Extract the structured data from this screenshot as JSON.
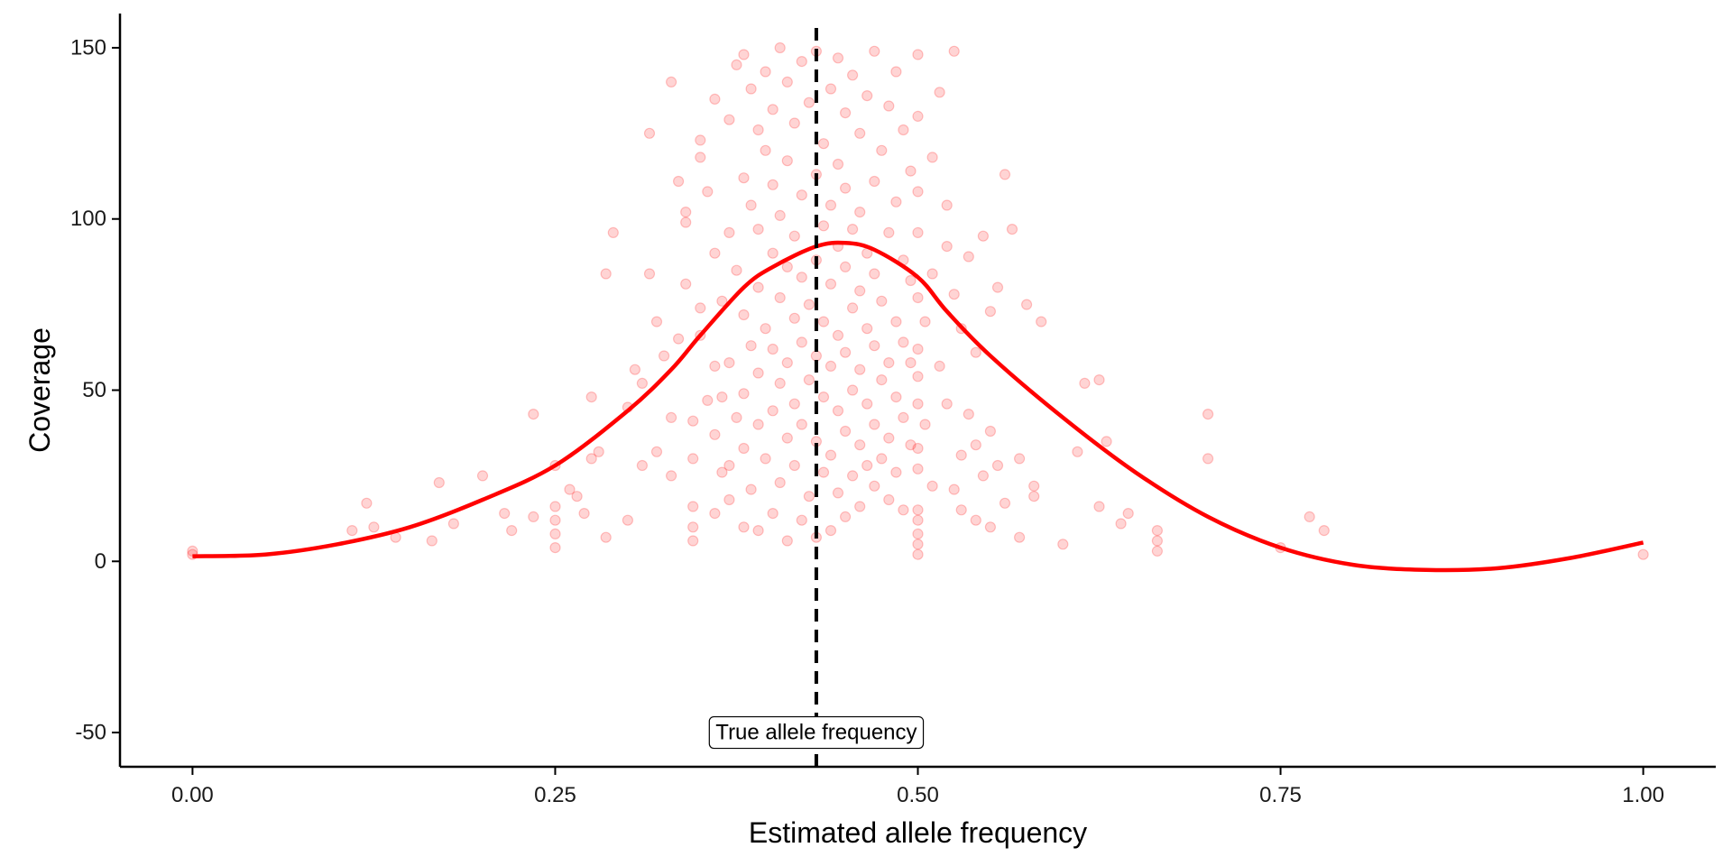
{
  "chart_data": {
    "type": "scatter",
    "title": "",
    "xlabel": "Estimated allele frequency",
    "ylabel": "Coverage",
    "xlim": [
      -0.05,
      1.05
    ],
    "ylim": [
      -60,
      160
    ],
    "x_ticks": [
      0.0,
      0.25,
      0.5,
      0.75,
      1.0
    ],
    "x_tick_labels": [
      "0.00",
      "0.25",
      "0.50",
      "0.75",
      "1.00"
    ],
    "y_ticks": [
      -50,
      0,
      50,
      100,
      150
    ],
    "y_tick_labels": [
      "-50",
      "0",
      "50",
      "100",
      "150"
    ],
    "grid": false,
    "legend": "none",
    "colors": {
      "points": "#ff0000",
      "smooth": "#ff0000",
      "reference_line": "#000000",
      "axis": "#000000"
    },
    "reference_line": {
      "x": 0.43,
      "style": "dashed",
      "label": "True allele frequency",
      "label_y": -50
    },
    "smooth_curve": {
      "x": [
        0.0,
        0.05,
        0.1,
        0.15,
        0.2,
        0.25,
        0.3,
        0.33,
        0.35,
        0.38,
        0.4,
        0.43,
        0.45,
        0.47,
        0.5,
        0.52,
        0.55,
        0.6,
        0.65,
        0.7,
        0.75,
        0.8,
        0.85,
        0.9,
        0.95,
        1.0
      ],
      "y": [
        1.5,
        2,
        5,
        10,
        18,
        28,
        44,
        56,
        66,
        80,
        86,
        92,
        93,
        91,
        83,
        73,
        60,
        42,
        26,
        13,
        4,
        -1,
        -2.5,
        -2,
        1,
        5.5
      ]
    },
    "points": [
      [
        0.0,
        3
      ],
      [
        0.0,
        2
      ],
      [
        0.11,
        9
      ],
      [
        0.12,
        17
      ],
      [
        0.125,
        10
      ],
      [
        0.14,
        7
      ],
      [
        0.165,
        6
      ],
      [
        0.17,
        23
      ],
      [
        0.18,
        11
      ],
      [
        0.2,
        25
      ],
      [
        0.215,
        14
      ],
      [
        0.22,
        9
      ],
      [
        0.235,
        43
      ],
      [
        0.235,
        13
      ],
      [
        0.25,
        28
      ],
      [
        0.25,
        16
      ],
      [
        0.25,
        12
      ],
      [
        0.25,
        8
      ],
      [
        0.25,
        4
      ],
      [
        0.26,
        21
      ],
      [
        0.265,
        19
      ],
      [
        0.27,
        14
      ],
      [
        0.275,
        48
      ],
      [
        0.275,
        30
      ],
      [
        0.28,
        32
      ],
      [
        0.285,
        7
      ],
      [
        0.285,
        84
      ],
      [
        0.29,
        96
      ],
      [
        0.3,
        45
      ],
      [
        0.3,
        12
      ],
      [
        0.305,
        56
      ],
      [
        0.31,
        28
      ],
      [
        0.31,
        52
      ],
      [
        0.315,
        84
      ],
      [
        0.315,
        125
      ],
      [
        0.32,
        32
      ],
      [
        0.32,
        70
      ],
      [
        0.325,
        60
      ],
      [
        0.33,
        42
      ],
      [
        0.33,
        25
      ],
      [
        0.33,
        140
      ],
      [
        0.335,
        111
      ],
      [
        0.335,
        65
      ],
      [
        0.34,
        81
      ],
      [
        0.34,
        99
      ],
      [
        0.34,
        102
      ],
      [
        0.345,
        41
      ],
      [
        0.345,
        30
      ],
      [
        0.345,
        6
      ],
      [
        0.345,
        10
      ],
      [
        0.345,
        16
      ],
      [
        0.35,
        66
      ],
      [
        0.35,
        74
      ],
      [
        0.35,
        123
      ],
      [
        0.35,
        118
      ],
      [
        0.355,
        47
      ],
      [
        0.355,
        108
      ],
      [
        0.36,
        37
      ],
      [
        0.36,
        57
      ],
      [
        0.36,
        135
      ],
      [
        0.36,
        90
      ],
      [
        0.36,
        14
      ],
      [
        0.365,
        26
      ],
      [
        0.365,
        48
      ],
      [
        0.365,
        76
      ],
      [
        0.37,
        18
      ],
      [
        0.37,
        28
      ],
      [
        0.37,
        58
      ],
      [
        0.37,
        96
      ],
      [
        0.37,
        129
      ],
      [
        0.375,
        42
      ],
      [
        0.375,
        85
      ],
      [
        0.375,
        145
      ],
      [
        0.38,
        10
      ],
      [
        0.38,
        33
      ],
      [
        0.38,
        49
      ],
      [
        0.38,
        72
      ],
      [
        0.38,
        112
      ],
      [
        0.38,
        148
      ],
      [
        0.385,
        21
      ],
      [
        0.385,
        63
      ],
      [
        0.385,
        104
      ],
      [
        0.385,
        138
      ],
      [
        0.39,
        9
      ],
      [
        0.39,
        40
      ],
      [
        0.39,
        55
      ],
      [
        0.39,
        80
      ],
      [
        0.39,
        97
      ],
      [
        0.39,
        126
      ],
      [
        0.395,
        30
      ],
      [
        0.395,
        68
      ],
      [
        0.395,
        120
      ],
      [
        0.395,
        143
      ],
      [
        0.4,
        14
      ],
      [
        0.4,
        44
      ],
      [
        0.4,
        62
      ],
      [
        0.4,
        90
      ],
      [
        0.4,
        110
      ],
      [
        0.4,
        132
      ],
      [
        0.405,
        23
      ],
      [
        0.405,
        52
      ],
      [
        0.405,
        77
      ],
      [
        0.405,
        101
      ],
      [
        0.405,
        150
      ],
      [
        0.41,
        6
      ],
      [
        0.41,
        36
      ],
      [
        0.41,
        58
      ],
      [
        0.41,
        86
      ],
      [
        0.41,
        117
      ],
      [
        0.41,
        140
      ],
      [
        0.415,
        28
      ],
      [
        0.415,
        46
      ],
      [
        0.415,
        71
      ],
      [
        0.415,
        95
      ],
      [
        0.415,
        128
      ],
      [
        0.42,
        12
      ],
      [
        0.42,
        40
      ],
      [
        0.42,
        64
      ],
      [
        0.42,
        83
      ],
      [
        0.42,
        107
      ],
      [
        0.42,
        146
      ],
      [
        0.425,
        19
      ],
      [
        0.425,
        53
      ],
      [
        0.425,
        75
      ],
      [
        0.425,
        134
      ],
      [
        0.43,
        7
      ],
      [
        0.43,
        35
      ],
      [
        0.43,
        60
      ],
      [
        0.43,
        88
      ],
      [
        0.43,
        113
      ],
      [
        0.43,
        149
      ],
      [
        0.435,
        26
      ],
      [
        0.435,
        48
      ],
      [
        0.435,
        70
      ],
      [
        0.435,
        98
      ],
      [
        0.435,
        122
      ],
      [
        0.44,
        9
      ],
      [
        0.44,
        31
      ],
      [
        0.44,
        57
      ],
      [
        0.44,
        81
      ],
      [
        0.44,
        104
      ],
      [
        0.44,
        138
      ],
      [
        0.445,
        20
      ],
      [
        0.445,
        44
      ],
      [
        0.445,
        66
      ],
      [
        0.445,
        92
      ],
      [
        0.445,
        116
      ],
      [
        0.445,
        147
      ],
      [
        0.45,
        13
      ],
      [
        0.45,
        38
      ],
      [
        0.45,
        61
      ],
      [
        0.45,
        86
      ],
      [
        0.45,
        109
      ],
      [
        0.45,
        131
      ],
      [
        0.455,
        25
      ],
      [
        0.455,
        50
      ],
      [
        0.455,
        74
      ],
      [
        0.455,
        97
      ],
      [
        0.455,
        142
      ],
      [
        0.46,
        16
      ],
      [
        0.46,
        34
      ],
      [
        0.46,
        56
      ],
      [
        0.46,
        79
      ],
      [
        0.46,
        102
      ],
      [
        0.46,
        125
      ],
      [
        0.465,
        28
      ],
      [
        0.465,
        46
      ],
      [
        0.465,
        68
      ],
      [
        0.465,
        90
      ],
      [
        0.465,
        136
      ],
      [
        0.47,
        22
      ],
      [
        0.47,
        40
      ],
      [
        0.47,
        63
      ],
      [
        0.47,
        84
      ],
      [
        0.47,
        111
      ],
      [
        0.47,
        149
      ],
      [
        0.475,
        30
      ],
      [
        0.475,
        53
      ],
      [
        0.475,
        76
      ],
      [
        0.475,
        120
      ],
      [
        0.48,
        18
      ],
      [
        0.48,
        36
      ],
      [
        0.48,
        58
      ],
      [
        0.48,
        96
      ],
      [
        0.48,
        133
      ],
      [
        0.485,
        26
      ],
      [
        0.485,
        48
      ],
      [
        0.485,
        70
      ],
      [
        0.485,
        105
      ],
      [
        0.485,
        143
      ],
      [
        0.49,
        15
      ],
      [
        0.49,
        42
      ],
      [
        0.49,
        64
      ],
      [
        0.49,
        88
      ],
      [
        0.49,
        126
      ],
      [
        0.495,
        34
      ],
      [
        0.495,
        58
      ],
      [
        0.495,
        82
      ],
      [
        0.495,
        114
      ],
      [
        0.5,
        2
      ],
      [
        0.5,
        5
      ],
      [
        0.5,
        8
      ],
      [
        0.5,
        12
      ],
      [
        0.5,
        15
      ],
      [
        0.5,
        27
      ],
      [
        0.5,
        33
      ],
      [
        0.5,
        46
      ],
      [
        0.5,
        54
      ],
      [
        0.5,
        62
      ],
      [
        0.5,
        77
      ],
      [
        0.5,
        96
      ],
      [
        0.5,
        108
      ],
      [
        0.5,
        130
      ],
      [
        0.5,
        148
      ],
      [
        0.505,
        40
      ],
      [
        0.505,
        70
      ],
      [
        0.51,
        22
      ],
      [
        0.51,
        84
      ],
      [
        0.51,
        118
      ],
      [
        0.515,
        57
      ],
      [
        0.515,
        137
      ],
      [
        0.52,
        46
      ],
      [
        0.52,
        92
      ],
      [
        0.52,
        104
      ],
      [
        0.525,
        21
      ],
      [
        0.525,
        78
      ],
      [
        0.525,
        149
      ],
      [
        0.53,
        15
      ],
      [
        0.53,
        31
      ],
      [
        0.53,
        68
      ],
      [
        0.535,
        43
      ],
      [
        0.535,
        89
      ],
      [
        0.54,
        12
      ],
      [
        0.54,
        34
      ],
      [
        0.54,
        61
      ],
      [
        0.545,
        25
      ],
      [
        0.545,
        95
      ],
      [
        0.55,
        10
      ],
      [
        0.55,
        38
      ],
      [
        0.55,
        73
      ],
      [
        0.555,
        28
      ],
      [
        0.555,
        80
      ],
      [
        0.56,
        17
      ],
      [
        0.56,
        113
      ],
      [
        0.565,
        97
      ],
      [
        0.57,
        30
      ],
      [
        0.57,
        7
      ],
      [
        0.575,
        75
      ],
      [
        0.58,
        19
      ],
      [
        0.58,
        22
      ],
      [
        0.585,
        70
      ],
      [
        0.6,
        5
      ],
      [
        0.61,
        32
      ],
      [
        0.615,
        52
      ],
      [
        0.625,
        53
      ],
      [
        0.625,
        16
      ],
      [
        0.63,
        35
      ],
      [
        0.64,
        11
      ],
      [
        0.645,
        14
      ],
      [
        0.665,
        9
      ],
      [
        0.665,
        6
      ],
      [
        0.665,
        3
      ],
      [
        0.7,
        43
      ],
      [
        0.7,
        30
      ],
      [
        0.75,
        4
      ],
      [
        0.77,
        13
      ],
      [
        0.78,
        9
      ],
      [
        1.0,
        2
      ]
    ]
  }
}
